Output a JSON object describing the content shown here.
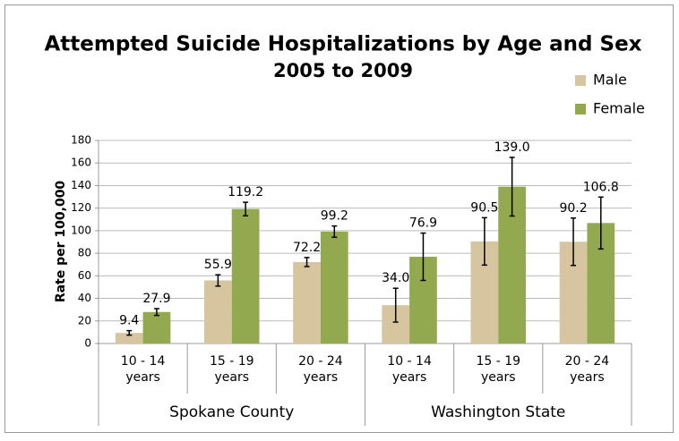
{
  "chart_data": {
    "type": "bar",
    "title": "Attempted Suicide Hospitalizations by Age and Sex",
    "subtitle": "2005 to 2009",
    "y_label": "Rate per 100,000",
    "groups": [
      {
        "name": "Spokane County",
        "categories": [
          [
            "10 - 14",
            "years"
          ],
          [
            "15 - 19",
            "years"
          ],
          [
            "20 - 24",
            "years"
          ]
        ]
      },
      {
        "name": "Washington State",
        "categories": [
          [
            "10 - 14",
            "years"
          ],
          [
            "15 - 19",
            "years"
          ],
          [
            "20 - 24",
            "years"
          ]
        ]
      }
    ],
    "series": [
      {
        "name": "Male",
        "color": "#d6c59f",
        "values": [
          9.4,
          55.9,
          72.2,
          34.0,
          90.5,
          90.2
        ],
        "value_labels": [
          "9.4",
          "55.9",
          "72.2",
          "34.0",
          "90.5",
          "90.2"
        ],
        "errors": [
          2,
          5,
          4,
          15,
          21,
          21
        ]
      },
      {
        "name": "Female",
        "color": "#93a94f",
        "values": [
          27.9,
          119.2,
          99.2,
          76.9,
          139.0,
          106.8
        ],
        "value_labels": [
          "27.9",
          "119.2",
          "99.2",
          "76.9",
          "139.0",
          "106.8"
        ],
        "errors": [
          3,
          6,
          5,
          21,
          26,
          23
        ]
      }
    ],
    "ylim": [
      0,
      180
    ],
    "yticks": [
      0,
      20,
      40,
      60,
      80,
      100,
      120,
      140,
      160,
      180
    ],
    "grid": true,
    "legend": "top-right"
  }
}
